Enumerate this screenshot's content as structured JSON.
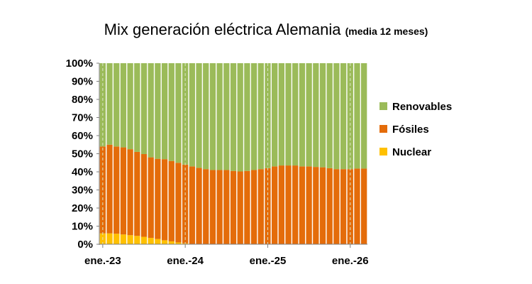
{
  "chart_data": {
    "type": "bar",
    "stacked": "percent",
    "title": "Mix generación eléctrica Alemania",
    "subtitle": "(media 12 meses)",
    "xlabel": "",
    "ylabel": "",
    "ylim": [
      0,
      100
    ],
    "y_ticks": [
      "0%",
      "10%",
      "20%",
      "30%",
      "40%",
      "50%",
      "60%",
      "70%",
      "80%",
      "90%",
      "100%"
    ],
    "x_ticks": [
      {
        "label": "ene.-23",
        "index": 0
      },
      {
        "label": "ene.-24",
        "index": 12
      },
      {
        "label": "ene.-25",
        "index": 24
      },
      {
        "label": "ene.-26",
        "index": 36
      }
    ],
    "legend": "right",
    "gridlines": "vertical-dashed",
    "series": [
      {
        "name": "Nuclear",
        "color": "#ffc000",
        "values": [
          6,
          6,
          5.8,
          5.4,
          5,
          4.6,
          4.1,
          3.5,
          2.9,
          2.2,
          1.6,
          1,
          0.5,
          0.2,
          0,
          0,
          0,
          0,
          0,
          0,
          0,
          0,
          0,
          0,
          0,
          0,
          0,
          0,
          0,
          0,
          0,
          0,
          0,
          0,
          0,
          0,
          0,
          0,
          0
        ]
      },
      {
        "name": "Fósiles",
        "color": "#e46c0a",
        "values": [
          48,
          49,
          48.2,
          48.1,
          47.5,
          46.4,
          45.7,
          44.5,
          44.3,
          44.8,
          44.4,
          44,
          43.5,
          42.8,
          42.2,
          41.5,
          41,
          41,
          41,
          40.5,
          40.2,
          40.5,
          41,
          41.5,
          42,
          43,
          43.5,
          43.5,
          43.5,
          43,
          43,
          42.7,
          42.5,
          42,
          41.5,
          41.5,
          41.5,
          41.8,
          41.8
        ]
      },
      {
        "name": "Renovables",
        "color": "#9bbb59",
        "values": [
          46,
          45,
          46,
          46.5,
          47.5,
          49,
          50.2,
          52,
          52.8,
          53,
          54,
          55,
          56,
          57,
          57.8,
          58.5,
          59,
          59,
          59,
          59.5,
          59.8,
          59.5,
          59,
          58.5,
          58,
          57,
          56.5,
          56.5,
          56.5,
          57,
          57,
          57.3,
          57.5,
          58,
          58.5,
          58.5,
          58.5,
          58.2,
          58.2
        ]
      }
    ]
  }
}
